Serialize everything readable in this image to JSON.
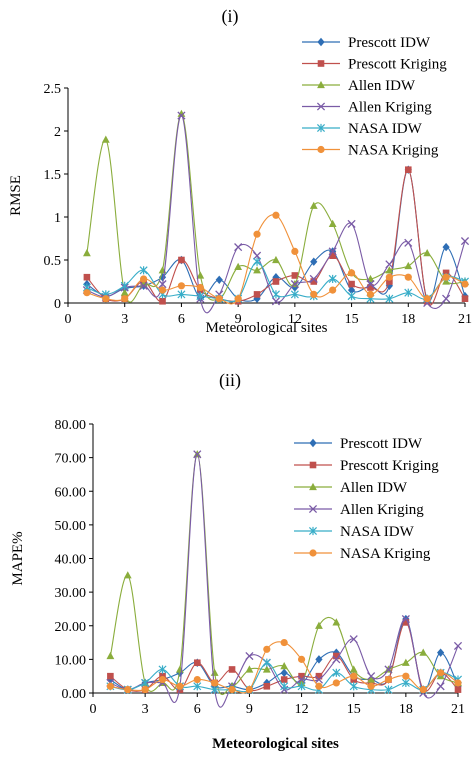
{
  "chart_data": [
    {
      "type": "line",
      "title": "(i)",
      "xlabel": "Meteorological sites",
      "ylabel": "RMSE",
      "xlim": [
        0,
        21
      ],
      "ylim": [
        0,
        2.5
      ],
      "xticks": [
        "0",
        "3",
        "6",
        "9",
        "12",
        "15",
        "18",
        "21"
      ],
      "yticks": [
        "0",
        "0.5",
        "1",
        "1.5",
        "2",
        "2.5"
      ],
      "grid": false,
      "legend": "top-right",
      "x": [
        1,
        2,
        3,
        4,
        5,
        6,
        7,
        8,
        9,
        10,
        11,
        12,
        13,
        14,
        15,
        16,
        17,
        18,
        19,
        20,
        21
      ],
      "series": [
        {
          "name": "Prescott IDW",
          "color": "#2e6eb5",
          "marker": "diamond",
          "values": [
            0.22,
            0.08,
            0.17,
            0.2,
            0.3,
            0.5,
            0.06,
            0.27,
            0.05,
            0.05,
            0.3,
            0.18,
            0.48,
            0.6,
            0.15,
            0.2,
            0.2,
            1.55,
            0.04,
            0.65,
            0.08
          ]
        },
        {
          "name": "Prescott Kriging",
          "color": "#c0504d",
          "marker": "square",
          "values": [
            0.3,
            0.05,
            0.05,
            0.25,
            0.02,
            0.5,
            0.15,
            0.05,
            0.02,
            0.1,
            0.25,
            0.32,
            0.25,
            0.55,
            0.22,
            0.18,
            0.25,
            1.55,
            0.02,
            0.35,
            0.05
          ]
        },
        {
          "name": "Allen IDW",
          "color": "#8aad3c",
          "marker": "triangle",
          "values": [
            0.58,
            1.9,
            0.12,
            0.22,
            0.38,
            2.2,
            0.32,
            0.05,
            0.42,
            0.38,
            0.5,
            0.22,
            1.13,
            0.92,
            0.35,
            0.28,
            0.38,
            0.43,
            0.58,
            0.25,
            0.25
          ]
        },
        {
          "name": "Allen Kriging",
          "color": "#7a5ba6",
          "marker": "x",
          "values": [
            0.15,
            0.07,
            0.18,
            0.2,
            0.22,
            2.18,
            0.05,
            0.1,
            0.65,
            0.55,
            0.02,
            0.22,
            0.28,
            0.6,
            0.92,
            0.22,
            0.45,
            0.7,
            0.0,
            0.05,
            0.72
          ]
        },
        {
          "name": "NASA IDW",
          "color": "#38adc8",
          "marker": "asterisk",
          "values": [
            0.18,
            0.1,
            0.2,
            0.38,
            0.1,
            0.1,
            0.08,
            0.05,
            0.05,
            0.48,
            0.1,
            0.1,
            0.08,
            0.28,
            0.08,
            0.05,
            0.05,
            0.12,
            0.05,
            0.3,
            0.25
          ]
        },
        {
          "name": "NASA Kriging",
          "color": "#f0913a",
          "marker": "circle",
          "values": [
            0.12,
            0.05,
            0.05,
            0.28,
            0.15,
            0.2,
            0.18,
            0.05,
            0.05,
            0.8,
            1.02,
            0.6,
            0.1,
            0.15,
            0.35,
            0.1,
            0.3,
            0.3,
            0.05,
            0.3,
            0.22
          ]
        }
      ]
    },
    {
      "type": "line",
      "title": "(ii)",
      "xlabel": "Meteorological sites",
      "ylabel": "MAPE%",
      "xlim": [
        0,
        21
      ],
      "ylim": [
        0,
        80
      ],
      "xticks": [
        "0",
        "3",
        "6",
        "9",
        "12",
        "15",
        "18",
        "21"
      ],
      "yticks": [
        "0.00",
        "10.00",
        "20.00",
        "30.00",
        "40.00",
        "50.00",
        "60.00",
        "70.00",
        "80.00"
      ],
      "grid": false,
      "legend": "top-right",
      "x": [
        1,
        2,
        3,
        4,
        5,
        6,
        7,
        8,
        9,
        10,
        11,
        12,
        13,
        14,
        15,
        16,
        17,
        18,
        19,
        20,
        21
      ],
      "series": [
        {
          "name": "Prescott IDW",
          "color": "#2e6eb5",
          "marker": "diamond",
          "values": [
            4,
            1,
            3,
            4,
            6,
            9,
            2,
            2,
            1,
            3,
            6,
            3,
            10,
            12,
            5,
            4,
            4,
            22,
            1,
            12,
            2
          ]
        },
        {
          "name": "Prescott Kriging",
          "color": "#c0504d",
          "marker": "square",
          "values": [
            5,
            1,
            1,
            5,
            1,
            9,
            3,
            7,
            1,
            2,
            4,
            5,
            5,
            11,
            4,
            3,
            4,
            21,
            1,
            6,
            1
          ]
        },
        {
          "name": "Allen IDW",
          "color": "#8aad3c",
          "marker": "triangle",
          "values": [
            11,
            35,
            3,
            3,
            7,
            71,
            6,
            2,
            7,
            7,
            8,
            3,
            20,
            21,
            7,
            4,
            7,
            9,
            12,
            5,
            3
          ]
        },
        {
          "name": "Allen Kriging",
          "color": "#7a5ba6",
          "marker": "x",
          "values": [
            3,
            1,
            3,
            3,
            2,
            71,
            1,
            2,
            11,
            9,
            1,
            4,
            4,
            10,
            16,
            5,
            7,
            22,
            0,
            2,
            14
          ]
        },
        {
          "name": "NASA IDW",
          "color": "#38adc8",
          "marker": "asterisk",
          "values": [
            2,
            1,
            3,
            7,
            2,
            2,
            1,
            1,
            1,
            9,
            2,
            2,
            1,
            6,
            2,
            1,
            1,
            3,
            1,
            6,
            4
          ]
        },
        {
          "name": "NASA Kriging",
          "color": "#f0913a",
          "marker": "circle",
          "values": [
            2,
            1,
            1,
            4,
            2,
            4,
            3,
            1,
            1,
            13,
            15,
            10,
            2,
            3,
            5,
            2,
            4,
            5,
            1,
            6,
            3
          ]
        }
      ]
    }
  ]
}
